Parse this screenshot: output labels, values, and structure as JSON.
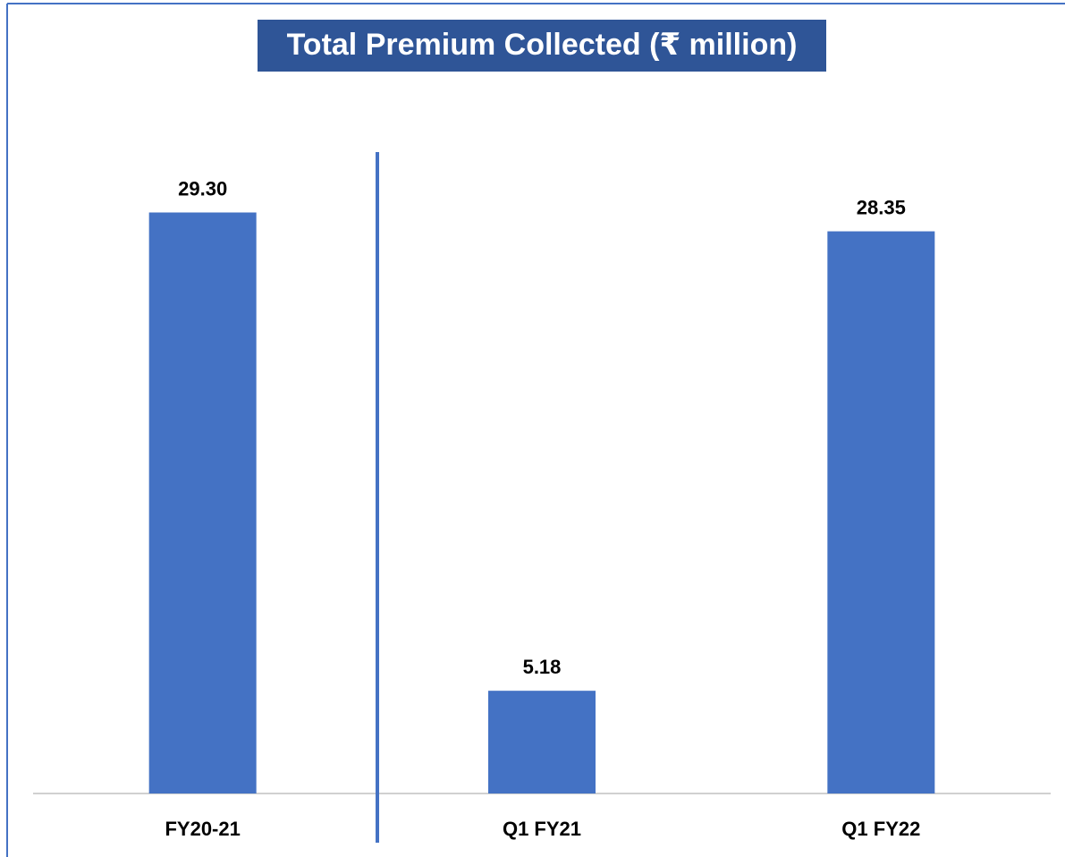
{
  "chart_data": {
    "type": "bar",
    "title": "Total Premium Collected (₹ million)",
    "categories": [
      "FY20-21",
      "Q1 FY21",
      "Q1 FY22"
    ],
    "values": [
      29.3,
      5.18,
      28.35
    ],
    "value_labels": [
      "29.30",
      "5.18",
      "28.35"
    ],
    "color": "#4472c4",
    "ylim": [
      0,
      30
    ]
  }
}
